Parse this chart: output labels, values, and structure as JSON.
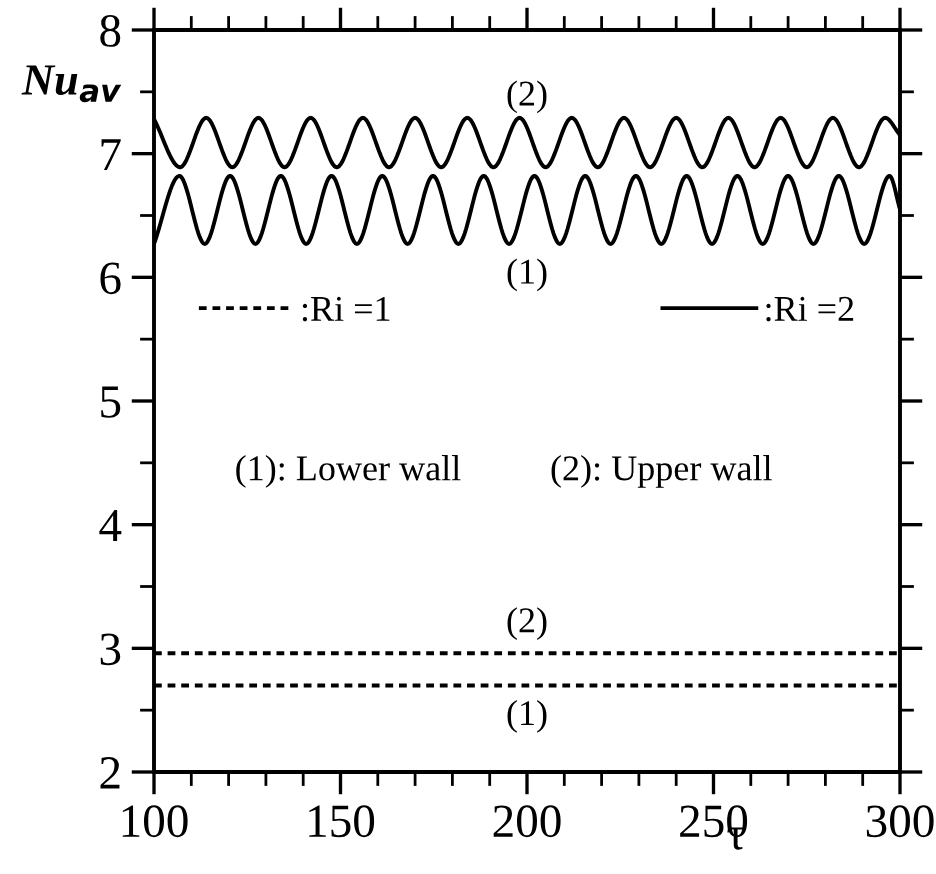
{
  "chart_data": {
    "type": "line",
    "xlabel": "τ",
    "ylabel": "Nu$_{av}$",
    "xlim": [
      100,
      300
    ],
    "ylim": [
      2,
      8
    ],
    "xticks": [
      100,
      150,
      200,
      250,
      300
    ],
    "yticks": [
      2,
      3,
      4,
      5,
      6,
      7,
      8
    ],
    "grid": false,
    "legend": "top",
    "marker": "none",
    "series": [
      {
        "name": ":Ri =1",
        "color": "#000000",
        "line_style": "dotted",
        "x": [
          100,
          300
        ],
        "values": [
          2.7,
          2.7
        ]
      },
      {
        "color": "#000000",
        "line_style": "dotted",
        "x": [
          100,
          300
        ],
        "values": [
          2.96,
          2.96
        ]
      },
      {
        "name": ":Ri =2",
        "color": "#000000",
        "line_style": "solid",
        "x": [
          100,
          106.8,
          113.6,
          120.4,
          127.2,
          134,
          140.8,
          147.6,
          154.4,
          161.2,
          168,
          174.8,
          181.6,
          188.4,
          195.2,
          202,
          208.8,
          215.6,
          222.4,
          229.2,
          236,
          242.8,
          249.6,
          256.4,
          263.2,
          270,
          276.8,
          283.6,
          290.4,
          297.2,
          300
        ],
        "values": [
          6.27,
          6.82,
          6.27,
          6.82,
          6.27,
          6.82,
          6.27,
          6.82,
          6.27,
          6.82,
          6.27,
          6.82,
          6.27,
          6.82,
          6.27,
          6.82,
          6.27,
          6.82,
          6.27,
          6.82,
          6.27,
          6.82,
          6.27,
          6.82,
          6.27,
          6.82,
          6.27,
          6.82,
          6.27,
          6.82,
          6.55
        ]
      },
      {
        "color": "#000000",
        "line_style": "solid",
        "x": [
          100,
          107,
          114,
          121,
          128,
          135,
          142,
          149,
          156,
          163,
          170,
          177,
          184,
          191,
          198,
          205,
          212,
          219,
          226,
          233,
          240,
          247,
          254,
          261,
          268,
          275,
          282,
          289,
          296,
          300
        ],
        "values": [
          7.28,
          6.89,
          7.29,
          6.89,
          7.29,
          6.89,
          7.29,
          6.89,
          7.29,
          6.89,
          7.29,
          6.89,
          7.29,
          6.89,
          7.29,
          6.89,
          7.29,
          6.89,
          7.29,
          6.89,
          7.29,
          6.89,
          7.29,
          6.89,
          7.29,
          6.89,
          7.29,
          6.89,
          7.29,
          7.15
        ]
      }
    ],
    "annotations": [
      "(2)",
      "(1)",
      "(2)",
      "(1)",
      "(1): Lower wall",
      "(2): Upper wall"
    ]
  }
}
